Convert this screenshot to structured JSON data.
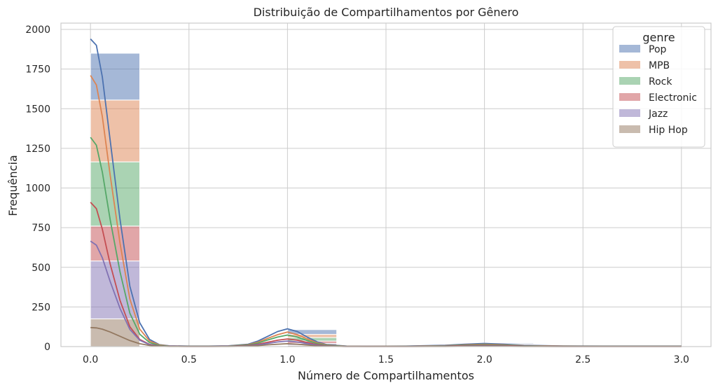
{
  "chart_data": {
    "type": "bar",
    "subtype": "stacked-histogram-with-kde",
    "title": "Distribuição de Compartilhamentos por Gênero",
    "xlabel": "Número de Compartilhamentos",
    "ylabel": "Frequência",
    "xlim": [
      -0.15,
      3.15
    ],
    "ylim": [
      0,
      2040
    ],
    "xticks": [
      0.0,
      0.5,
      1.0,
      1.5,
      2.0,
      2.5,
      3.0
    ],
    "xtick_labels": [
      "0.0",
      "0.5",
      "1.0",
      "1.5",
      "2.0",
      "2.5",
      "3.0"
    ],
    "yticks": [
      0,
      250,
      500,
      750,
      1000,
      1250,
      1500,
      1750,
      2000
    ],
    "ytick_labels": [
      "0",
      "250",
      "500",
      "750",
      "1000",
      "1250",
      "1500",
      "1750",
      "2000"
    ],
    "grid": true,
    "legend_title": "genre",
    "legend_position": "top-right",
    "bin_edges": [
      0,
      0.25,
      0.5,
      0.75,
      1.0,
      1.25,
      1.5,
      1.75,
      2.0,
      2.25,
      2.5,
      2.75,
      3.0
    ],
    "series": [
      {
        "name": "Pop",
        "color": "#4c72b0",
        "counts": [
          295,
          0,
          0,
          0,
          30,
          0,
          0,
          0,
          6,
          0,
          0,
          2
        ],
        "kde_x": [
          0.0,
          0.03,
          0.06,
          0.1,
          0.15,
          0.2,
          0.25,
          0.3,
          0.35,
          0.4,
          0.5,
          0.6,
          0.7,
          0.8,
          0.85,
          0.9,
          0.95,
          1.0,
          1.05,
          1.1,
          1.15,
          1.2,
          1.3,
          1.4,
          1.6,
          1.8,
          1.9,
          2.0,
          2.1,
          2.2,
          2.4,
          2.6,
          3.0
        ],
        "kde_y": [
          1940,
          1900,
          1700,
          1300,
          800,
          380,
          150,
          45,
          12,
          5,
          3,
          3,
          5,
          15,
          35,
          65,
          95,
          112,
          95,
          60,
          30,
          12,
          3,
          2,
          3,
          8,
          15,
          20,
          15,
          8,
          4,
          3,
          3
        ]
      },
      {
        "name": "MPB",
        "color": "#dd8452",
        "counts": [
          390,
          0,
          0,
          0,
          20,
          0,
          0,
          0,
          5,
          0,
          0,
          1
        ],
        "kde_x": [
          0.0,
          0.03,
          0.06,
          0.1,
          0.15,
          0.2,
          0.25,
          0.3,
          0.35,
          0.4,
          0.5,
          0.6,
          0.7,
          0.8,
          0.85,
          0.9,
          0.95,
          1.0,
          1.05,
          1.1,
          1.15,
          1.2,
          1.3,
          1.4,
          1.6,
          1.8,
          1.9,
          2.0,
          2.1,
          2.2,
          2.4,
          2.6,
          3.0
        ],
        "kde_y": [
          1710,
          1650,
          1450,
          1080,
          650,
          300,
          110,
          35,
          10,
          4,
          2,
          2,
          4,
          12,
          28,
          52,
          75,
          92,
          75,
          48,
          24,
          10,
          2,
          1,
          2,
          6,
          11,
          15,
          11,
          6,
          3,
          2,
          2
        ]
      },
      {
        "name": "Rock",
        "color": "#55a868",
        "counts": [
          405,
          0,
          0,
          0,
          22,
          0,
          0,
          0,
          4,
          0,
          0,
          1
        ],
        "kde_x": [
          0.0,
          0.03,
          0.06,
          0.1,
          0.15,
          0.2,
          0.25,
          0.3,
          0.35,
          0.4,
          0.5,
          0.6,
          0.7,
          0.8,
          0.85,
          0.9,
          0.95,
          1.0,
          1.05,
          1.1,
          1.15,
          1.2,
          1.3,
          1.4,
          1.6,
          1.8,
          1.9,
          2.0,
          2.1,
          2.2,
          2.4,
          2.6,
          3.0
        ],
        "kde_y": [
          1320,
          1270,
          1100,
          800,
          470,
          210,
          78,
          25,
          7,
          3,
          2,
          2,
          3,
          10,
          22,
          42,
          60,
          73,
          60,
          38,
          19,
          8,
          2,
          1,
          2,
          5,
          9,
          12,
          9,
          5,
          2,
          2,
          2
        ]
      },
      {
        "name": "Electronic",
        "color": "#c44e52",
        "counts": [
          220,
          0,
          0,
          0,
          15,
          0,
          0,
          0,
          3,
          0,
          0,
          1
        ],
        "kde_x": [
          0.0,
          0.03,
          0.06,
          0.1,
          0.15,
          0.2,
          0.25,
          0.3,
          0.35,
          0.4,
          0.5,
          0.6,
          0.7,
          0.8,
          0.85,
          0.9,
          0.95,
          1.0,
          1.05,
          1.1,
          1.15,
          1.2,
          1.3,
          1.4,
          1.6,
          1.8,
          1.9,
          2.0,
          2.1,
          2.2,
          2.4,
          2.6,
          3.0
        ],
        "kde_y": [
          910,
          870,
          740,
          520,
          290,
          125,
          45,
          14,
          4,
          2,
          1,
          1,
          2,
          7,
          15,
          28,
          40,
          48,
          40,
          26,
          13,
          5,
          1,
          1,
          1,
          3,
          6,
          8,
          6,
          3,
          1,
          1,
          1
        ]
      },
      {
        "name": "Jazz",
        "color": "#8172b3",
        "counts": [
          365,
          0,
          0,
          0,
          12,
          0,
          0,
          0,
          3,
          0,
          0,
          0
        ],
        "kde_x": [
          0.0,
          0.03,
          0.06,
          0.1,
          0.15,
          0.2,
          0.25,
          0.3,
          0.35,
          0.4,
          0.5,
          0.6,
          0.7,
          0.8,
          0.85,
          0.9,
          0.95,
          1.0,
          1.05,
          1.1,
          1.15,
          1.2,
          1.3,
          1.4,
          1.6,
          1.8,
          1.9,
          2.0,
          2.1,
          2.2,
          2.4,
          2.6,
          3.0
        ],
        "kde_y": [
          665,
          640,
          560,
          410,
          240,
          108,
          40,
          12,
          4,
          2,
          1,
          1,
          2,
          5,
          11,
          20,
          29,
          35,
          29,
          19,
          9,
          4,
          1,
          1,
          1,
          2,
          4,
          6,
          4,
          2,
          1,
          1,
          1
        ]
      },
      {
        "name": "Hip Hop",
        "color": "#937860",
        "counts": [
          175,
          0,
          0,
          0,
          8,
          0,
          0,
          0,
          2,
          0,
          0,
          0
        ],
        "kde_x": [
          0.0,
          0.03,
          0.06,
          0.1,
          0.15,
          0.2,
          0.25,
          0.3,
          0.35,
          0.4,
          0.5,
          0.6,
          0.7,
          0.8,
          0.85,
          0.9,
          0.95,
          1.0,
          1.05,
          1.1,
          1.15,
          1.2,
          1.3,
          1.4,
          1.6,
          1.8,
          1.9,
          2.0,
          2.1,
          2.2,
          2.4,
          2.6,
          3.0
        ],
        "kde_y": [
          120,
          118,
          110,
          92,
          65,
          38,
          18,
          7,
          3,
          1,
          1,
          1,
          1,
          3,
          6,
          11,
          15,
          18,
          15,
          10,
          5,
          2,
          1,
          1,
          1,
          1,
          2,
          3,
          2,
          1,
          1,
          1,
          1
        ]
      }
    ]
  }
}
